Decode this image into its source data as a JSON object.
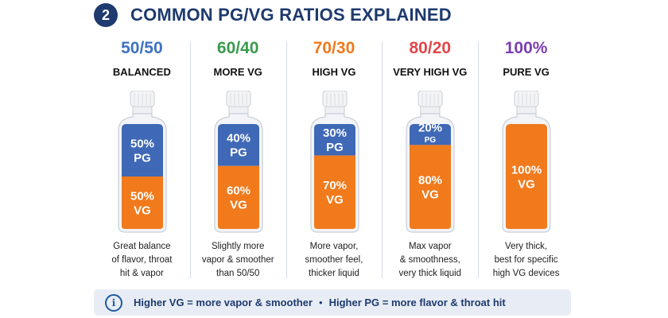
{
  "header": {
    "step": "2",
    "title": "COMMON PG/VG RATIOS EXPLAINED"
  },
  "colors": {
    "navy": "#1e3a6e",
    "pg_blue": "#3f68b6",
    "vg_orange": "#f07a1c"
  },
  "ratios": [
    {
      "ratio": "50/50",
      "label": "BALANCED",
      "ratio_color": "#3f72c0",
      "pg_fraction": 0.5,
      "pg_text": [
        "50%",
        "PG"
      ],
      "vg_text": [
        "50%",
        "VG"
      ],
      "desc": [
        "Great balance",
        "of flavor, throat",
        "hit & vapor"
      ]
    },
    {
      "ratio": "60/40",
      "label": "MORE VG",
      "ratio_color": "#3a9a4d",
      "pg_fraction": 0.4,
      "pg_text": [
        "40%",
        "PG"
      ],
      "vg_text": [
        "60%",
        "VG"
      ],
      "desc": [
        "Slightly more",
        "vapor & smoother",
        "than 50/50"
      ]
    },
    {
      "ratio": "70/30",
      "label": "HIGH VG",
      "ratio_color": "#f07a1c",
      "pg_fraction": 0.3,
      "pg_text": [
        "30%",
        "PG"
      ],
      "vg_text": [
        "70%",
        "VG"
      ],
      "desc": [
        "More vapor,",
        "smoother feel,",
        "thicker liquid"
      ]
    },
    {
      "ratio": "80/20",
      "label": "VERY HIGH VG",
      "ratio_color": "#e2464a",
      "pg_fraction": 0.2,
      "pg_text": [
        "20%",
        "PG"
      ],
      "vg_text": [
        "80%",
        "VG"
      ],
      "desc": [
        "Max vapor",
        "& smoothness,",
        "very thick liquid"
      ]
    },
    {
      "ratio": "100%",
      "label": "PURE VG",
      "ratio_color": "#7a3fb0",
      "pg_fraction": 0.0,
      "pg_text": [],
      "vg_text": [
        "100%",
        "VG"
      ],
      "desc": [
        "Very thick,",
        "best for specific",
        "high VG devices"
      ]
    }
  ],
  "footer": {
    "icon": "info-icon",
    "left": "Higher VG = more vapor & smoother",
    "separator": "•",
    "right": "Higher PG = more flavor & throat hit"
  }
}
